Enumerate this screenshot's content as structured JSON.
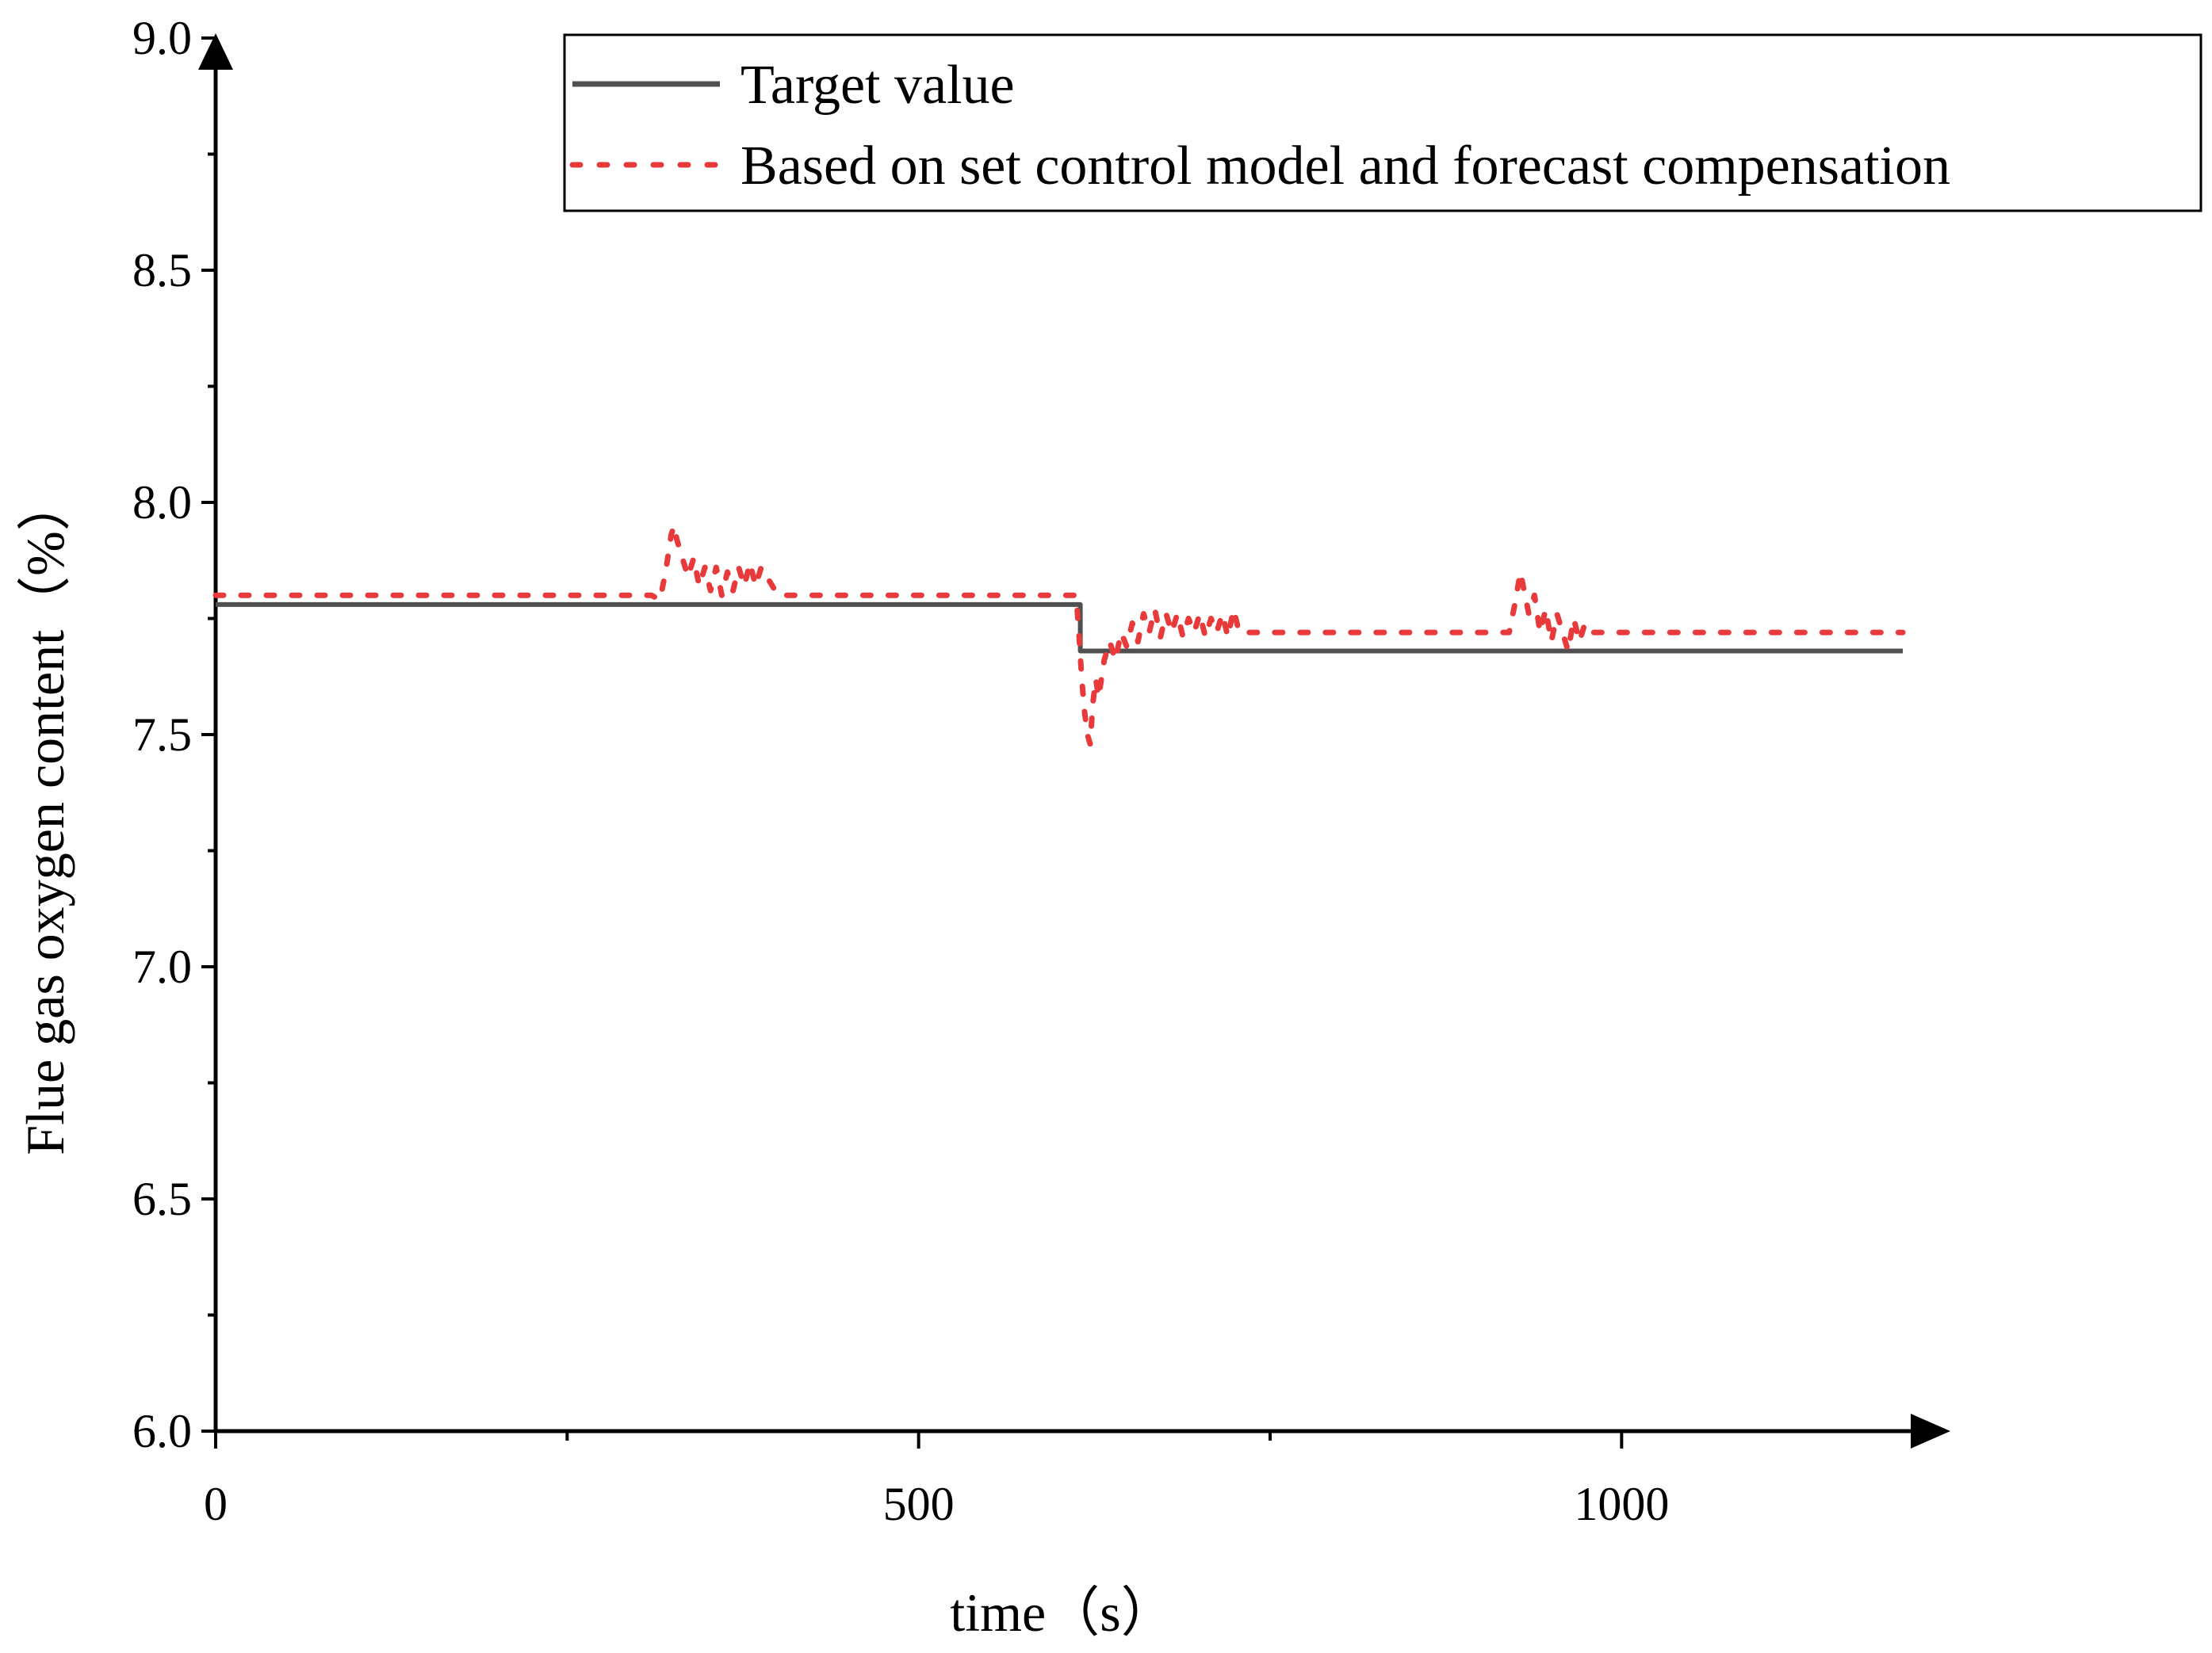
{
  "chart_data": {
    "type": "line",
    "xlabel": "time（s）",
    "ylabel": "Flue gas oxygen content（%）",
    "xlim": [
      0,
      1200
    ],
    "ylim": [
      6.0,
      9.0
    ],
    "x_ticks": [
      0,
      500,
      1000
    ],
    "x_tick_labels": [
      "0",
      "500",
      "1000"
    ],
    "y_ticks": [
      6.0,
      6.5,
      7.0,
      7.5,
      8.0,
      8.5,
      9.0
    ],
    "y_tick_labels": [
      "6.0",
      "6.5",
      "7.0",
      "7.5",
      "8.0",
      "8.5",
      "9.0"
    ],
    "grid": false,
    "legend_position": "top-right",
    "series": [
      {
        "name": "Target value",
        "style": "solid",
        "color": "#505050",
        "x": [
          0,
          615,
          615,
          1200
        ],
        "y": [
          7.78,
          7.78,
          7.68,
          7.68
        ]
      },
      {
        "name": "Based on set control model and forecast  compensation",
        "style": "dotted",
        "color": "#e83a3a",
        "x": [
          0,
          310,
          316,
          320,
          324,
          326,
          328,
          332,
          336,
          340,
          344,
          348,
          352,
          356,
          360,
          364,
          368,
          372,
          376,
          380,
          384,
          388,
          400,
          450,
          500,
          560,
          612,
          614,
          616,
          618,
          620,
          622,
          624,
          626,
          628,
          632,
          636,
          640,
          644,
          648,
          652,
          656,
          660,
          664,
          668,
          672,
          676,
          680,
          684,
          688,
          692,
          696,
          700,
          704,
          708,
          712,
          716,
          720,
          724,
          728,
          740,
          800,
          860,
          920,
          924,
          928,
          930,
          934,
          938,
          942,
          946,
          950,
          954,
          958,
          962,
          966,
          970,
          974,
          980,
          1000,
          1100,
          1200
        ],
        "y": [
          7.8,
          7.8,
          7.79,
          7.85,
          7.93,
          7.95,
          7.92,
          7.88,
          7.84,
          7.88,
          7.82,
          7.86,
          7.81,
          7.86,
          7.8,
          7.85,
          7.81,
          7.86,
          7.82,
          7.87,
          7.82,
          7.86,
          7.8,
          7.8,
          7.8,
          7.8,
          7.8,
          7.72,
          7.62,
          7.55,
          7.5,
          7.48,
          7.57,
          7.62,
          7.58,
          7.66,
          7.7,
          7.66,
          7.72,
          7.69,
          7.74,
          7.7,
          7.76,
          7.72,
          7.77,
          7.71,
          7.76,
          7.72,
          7.76,
          7.71,
          7.75,
          7.72,
          7.76,
          7.71,
          7.75,
          7.72,
          7.76,
          7.71,
          7.77,
          7.72,
          7.72,
          7.72,
          7.72,
          7.72,
          7.78,
          7.85,
          7.82,
          7.76,
          7.8,
          7.72,
          7.77,
          7.7,
          7.76,
          7.72,
          7.68,
          7.75,
          7.7,
          7.74,
          7.72,
          7.72,
          7.72,
          7.72
        ]
      }
    ]
  }
}
